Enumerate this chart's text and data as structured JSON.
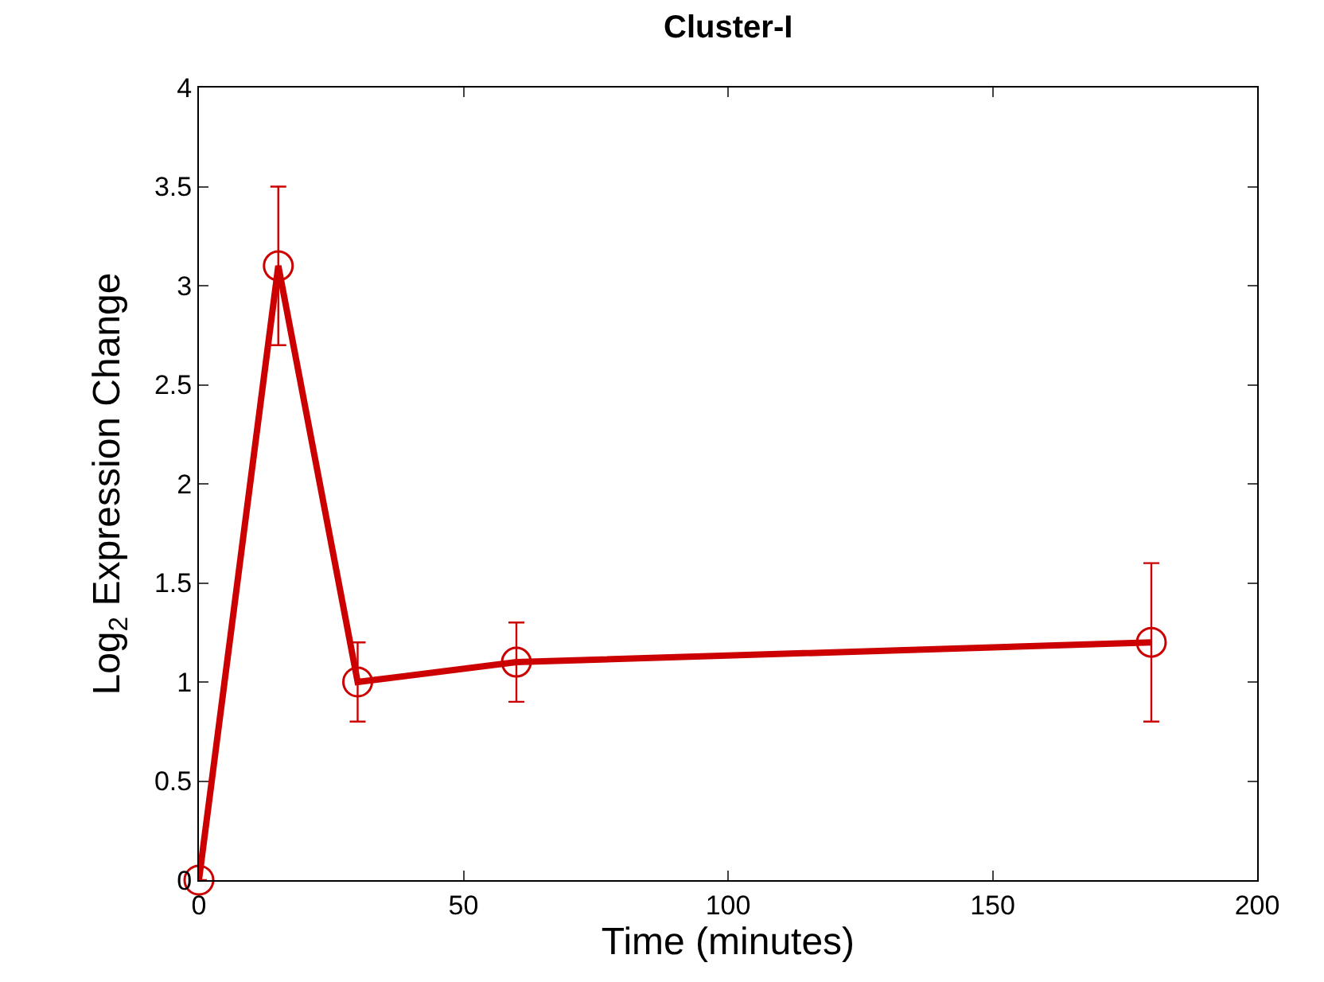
{
  "chart_data": {
    "type": "line",
    "title": "Cluster-I",
    "xlabel": "Time (minutes)",
    "ylabel": "Log$_{2}$ Expression Change",
    "x": [
      0,
      15,
      30,
      60,
      180
    ],
    "series": [
      {
        "color": "#cc0000",
        "values": [
          0,
          3.1,
          1.0,
          1.1,
          1.2
        ],
        "errors": [
          null,
          0.4,
          0.2,
          0.2,
          0.4
        ]
      }
    ],
    "xlim": [
      0,
      200
    ],
    "xticks": [
      0,
      50,
      100,
      150,
      200
    ],
    "ylim": [
      0,
      4
    ],
    "yticks": [
      0,
      0.5,
      1,
      1.5,
      2,
      2.5,
      3,
      3.5,
      4
    ],
    "marker": "circle",
    "line_style": "solid"
  }
}
